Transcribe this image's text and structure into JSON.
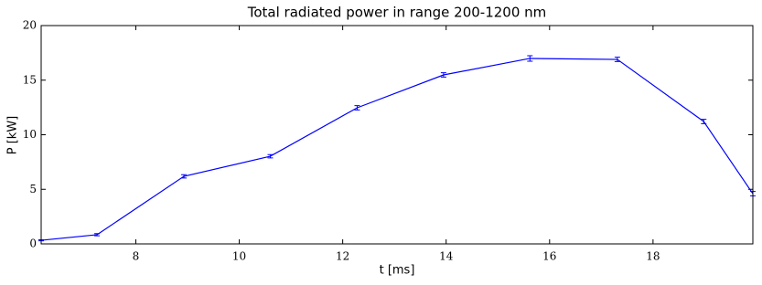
{
  "chart_data": {
    "type": "line",
    "title": "Total radiated power in range 200-1200 nm",
    "x_label": "t [ms]",
    "y_label": "P [kW]",
    "x": [
      6.17,
      7.25,
      8.93,
      10.6,
      12.28,
      13.95,
      15.62,
      17.31,
      18.98,
      19.93
    ],
    "series": [
      {
        "color": "#0000ff",
        "values": [
          0.33,
          0.84,
          6.19,
          8.03,
          12.47,
          15.48,
          16.99,
          16.9,
          11.21,
          4.6
        ],
        "errors": [
          0.05,
          0.1,
          0.15,
          0.15,
          0.2,
          0.2,
          0.25,
          0.2,
          0.2,
          0.2
        ]
      }
    ],
    "xlim": [
      6.17,
      19.93
    ],
    "ylim": [
      0,
      20
    ],
    "xticks": [
      8,
      10,
      12,
      14,
      16,
      18
    ],
    "yticks": [
      0,
      5,
      10,
      15,
      20
    ],
    "grid": false
  }
}
